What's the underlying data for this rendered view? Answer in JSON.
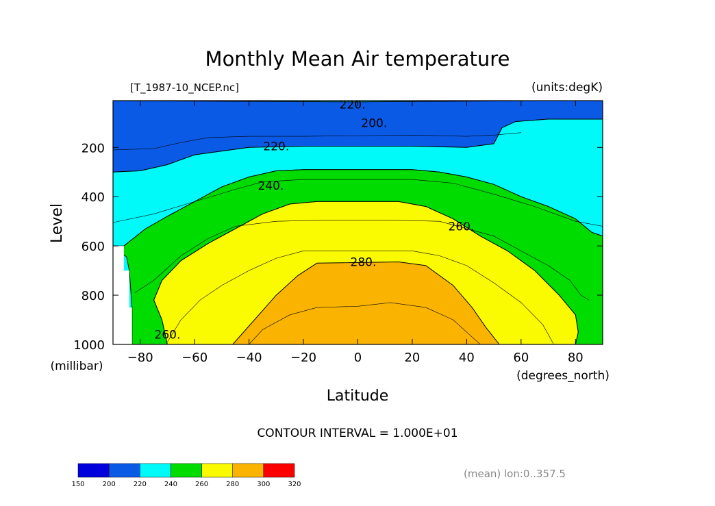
{
  "chart_data": {
    "type": "heatmap",
    "title": "Monthly Mean Air temperature",
    "subtitle_left": "[T_1987-10_NCEP.nc]",
    "subtitle_right": "(units:degK)",
    "xlabel": "Latitude",
    "ylabel": "Level",
    "x_units": "(degrees_north)",
    "y_units": "(millibar)",
    "xlim": [
      -90,
      90
    ],
    "ylim": [
      1000,
      10
    ],
    "y_reversed": true,
    "x_ticks": [
      -80,
      -60,
      -40,
      -20,
      0,
      20,
      40,
      60,
      80
    ],
    "x_tick_labels": [
      "−80",
      "−60",
      "−40",
      "−20",
      "0",
      "20",
      "40",
      "60",
      "80"
    ],
    "y_ticks": [
      200,
      400,
      600,
      800,
      1000
    ],
    "y_tick_labels": [
      "200",
      "400",
      "600",
      "800",
      "1000"
    ],
    "contour_interval_text": "CONTOUR INTERVAL = 1.000E+01",
    "contour_labels": [
      {
        "text": "220.",
        "x": -2,
        "p": 25
      },
      {
        "text": "200.",
        "x": 6,
        "p": 100
      },
      {
        "text": "220.",
        "x": -30,
        "p": 195
      },
      {
        "text": "240.",
        "x": -32,
        "p": 355
      },
      {
        "text": "260.",
        "x": 38,
        "p": 520
      },
      {
        "text": "280.",
        "x": 2,
        "p": 665
      },
      {
        "text": "260.",
        "x": -70,
        "p": 960
      }
    ],
    "filled_regions": [
      {
        "range": "150-200",
        "color": "#0000dc",
        "outline": [
          [
            -90,
            40
          ],
          [
            -80,
            45
          ],
          [
            -74,
            70
          ],
          [
            -72,
            120
          ],
          [
            -78,
            160
          ],
          [
            -86,
            170
          ],
          [
            -90,
            170
          ]
        ]
      },
      {
        "range": "150-200",
        "color": "#0000dc",
        "outline": [
          [
            -19,
            90
          ],
          [
            -10,
            80
          ],
          [
            10,
            80
          ],
          [
            22,
            92
          ],
          [
            10,
            105
          ],
          [
            -10,
            105
          ]
        ]
      },
      {
        "range": "200-220",
        "color": "#0a5ae6",
        "outline": [
          [
            -90,
            10
          ],
          [
            90,
            10
          ],
          [
            90,
            85
          ],
          [
            70,
            85
          ],
          [
            58,
            95
          ],
          [
            53,
            120
          ],
          [
            50,
            185
          ],
          [
            40,
            200
          ],
          [
            20,
            195
          ],
          [
            -20,
            195
          ],
          [
            -40,
            200
          ],
          [
            -60,
            230
          ],
          [
            -70,
            270
          ],
          [
            -80,
            295
          ],
          [
            -90,
            300
          ]
        ]
      },
      {
        "range": "220-240",
        "color": "#00fafa",
        "outline": [
          [
            -90,
            10
          ],
          [
            0,
            15
          ],
          [
            40,
            12
          ],
          [
            90,
            8
          ],
          [
            90,
            10
          ],
          [
            -90,
            10
          ]
        ]
      },
      {
        "range": "220-240",
        "color": "#00fafa",
        "outline": [
          [
            -90,
            300
          ],
          [
            -80,
            295
          ],
          [
            -70,
            270
          ],
          [
            -60,
            230
          ],
          [
            -40,
            200
          ],
          [
            -20,
            195
          ],
          [
            20,
            195
          ],
          [
            40,
            200
          ],
          [
            50,
            185
          ],
          [
            53,
            120
          ],
          [
            58,
            95
          ],
          [
            70,
            85
          ],
          [
            90,
            85
          ],
          [
            90,
            560
          ],
          [
            86,
            545
          ],
          [
            80,
            490
          ],
          [
            70,
            440
          ],
          [
            60,
            400
          ],
          [
            50,
            350
          ],
          [
            40,
            320
          ],
          [
            30,
            300
          ],
          [
            20,
            290
          ],
          [
            -20,
            290
          ],
          [
            -30,
            295
          ],
          [
            -40,
            320
          ],
          [
            -50,
            360
          ],
          [
            -60,
            420
          ],
          [
            -70,
            480
          ],
          [
            -78,
            530
          ],
          [
            -86,
            600
          ],
          [
            -90,
            600
          ]
        ]
      },
      {
        "range": "240-260",
        "color": "#00dc00",
        "outline": [
          [
            -86,
            600
          ],
          [
            -78,
            530
          ],
          [
            -70,
            480
          ],
          [
            -60,
            420
          ],
          [
            -50,
            360
          ],
          [
            -40,
            320
          ],
          [
            -30,
            295
          ],
          [
            -20,
            290
          ],
          [
            20,
            290
          ],
          [
            30,
            300
          ],
          [
            40,
            320
          ],
          [
            50,
            350
          ],
          [
            60,
            400
          ],
          [
            70,
            440
          ],
          [
            80,
            490
          ],
          [
            86,
            545
          ],
          [
            90,
            560
          ],
          [
            90,
            1000
          ],
          [
            80,
            1000
          ],
          [
            81,
            950
          ],
          [
            80,
            880
          ],
          [
            74,
            800
          ],
          [
            65,
            700
          ],
          [
            55,
            620
          ],
          [
            45,
            560
          ],
          [
            35,
            490
          ],
          [
            25,
            440
          ],
          [
            15,
            420
          ],
          [
            -15,
            420
          ],
          [
            -25,
            430
          ],
          [
            -35,
            470
          ],
          [
            -45,
            530
          ],
          [
            -55,
            590
          ],
          [
            -65,
            660
          ],
          [
            -72,
            740
          ],
          [
            -75,
            820
          ],
          [
            -72,
            900
          ],
          [
            -70,
            1000
          ],
          [
            -83,
            1000
          ],
          [
            -83,
            850
          ],
          [
            -84,
            700
          ],
          [
            -85,
            645
          ],
          [
            -88,
            620
          ]
        ]
      },
      {
        "range": "260-280",
        "color": "#fafa00",
        "outline": [
          [
            -70,
            1000
          ],
          [
            -72,
            900
          ],
          [
            -75,
            820
          ],
          [
            -72,
            740
          ],
          [
            -65,
            660
          ],
          [
            -55,
            590
          ],
          [
            -45,
            530
          ],
          [
            -35,
            470
          ],
          [
            -25,
            430
          ],
          [
            -15,
            420
          ],
          [
            15,
            420
          ],
          [
            25,
            440
          ],
          [
            35,
            490
          ],
          [
            45,
            560
          ],
          [
            55,
            620
          ],
          [
            65,
            700
          ],
          [
            74,
            800
          ],
          [
            80,
            880
          ],
          [
            81,
            950
          ],
          [
            80,
            1000
          ]
        ]
      },
      {
        "range": "280-300",
        "color": "#fab400",
        "outline": [
          [
            -46,
            1000
          ],
          [
            -38,
            900
          ],
          [
            -30,
            800
          ],
          [
            -22,
            720
          ],
          [
            -15,
            670
          ],
          [
            15,
            665
          ],
          [
            25,
            680
          ],
          [
            35,
            760
          ],
          [
            42,
            850
          ],
          [
            47,
            930
          ],
          [
            52,
            1000
          ]
        ]
      }
    ],
    "missing_regions": [
      {
        "outline": [
          [
            -90,
            600
          ],
          [
            -86,
            600
          ],
          [
            -86,
            700
          ],
          [
            -84,
            700
          ],
          [
            -84,
            850
          ],
          [
            -83,
            850
          ],
          [
            -83,
            1000
          ],
          [
            -90,
            1000
          ]
        ]
      }
    ],
    "thin_contours": [
      [
        [
          -90,
          210
        ],
        [
          -75,
          205
        ],
        [
          -65,
          180
        ],
        [
          -55,
          160
        ],
        [
          -40,
          155
        ],
        [
          -20,
          155
        ],
        [
          20,
          150
        ],
        [
          40,
          155
        ],
        [
          50,
          150
        ],
        [
          60,
          140
        ]
      ],
      [
        [
          -90,
          505
        ],
        [
          -75,
          470
        ],
        [
          -60,
          420
        ],
        [
          -45,
          370
        ],
        [
          -35,
          340
        ],
        [
          -20,
          330
        ],
        [
          20,
          330
        ],
        [
          35,
          345
        ],
        [
          50,
          390
        ],
        [
          65,
          440
        ],
        [
          80,
          500
        ],
        [
          90,
          520
        ]
      ],
      [
        [
          -82,
          790
        ],
        [
          -75,
          740
        ],
        [
          -65,
          640
        ],
        [
          -55,
          570
        ],
        [
          -45,
          520
        ],
        [
          -30,
          500
        ],
        [
          -10,
          495
        ],
        [
          10,
          495
        ],
        [
          30,
          500
        ],
        [
          50,
          560
        ],
        [
          60,
          620
        ],
        [
          70,
          680
        ],
        [
          78,
          740
        ],
        [
          82,
          800
        ],
        [
          85,
          820
        ]
      ],
      [
        [
          -70,
          990
        ],
        [
          -65,
          900
        ],
        [
          -58,
          820
        ],
        [
          -50,
          760
        ],
        [
          -40,
          700
        ],
        [
          -30,
          650
        ],
        [
          -20,
          620
        ],
        [
          0,
          620
        ],
        [
          20,
          620
        ],
        [
          30,
          640
        ],
        [
          40,
          680
        ],
        [
          50,
          750
        ],
        [
          60,
          830
        ],
        [
          68,
          920
        ],
        [
          72,
          1000
        ]
      ],
      [
        [
          -40,
          1000
        ],
        [
          -35,
          940
        ],
        [
          -25,
          880
        ],
        [
          -15,
          850
        ],
        [
          0,
          845
        ],
        [
          12,
          830
        ],
        [
          25,
          850
        ],
        [
          35,
          900
        ],
        [
          42,
          970
        ],
        [
          45,
          1000
        ]
      ]
    ],
    "colorbar": {
      "levels": [
        "150",
        "200",
        "220",
        "240",
        "260",
        "280",
        "300",
        "320"
      ],
      "colors": [
        "#0000dc",
        "#0a5ae6",
        "#00fafa",
        "#00dc00",
        "#fafa00",
        "#fab400",
        "#fa0000"
      ]
    },
    "footnote": "(mean) lon:0..357.5"
  }
}
